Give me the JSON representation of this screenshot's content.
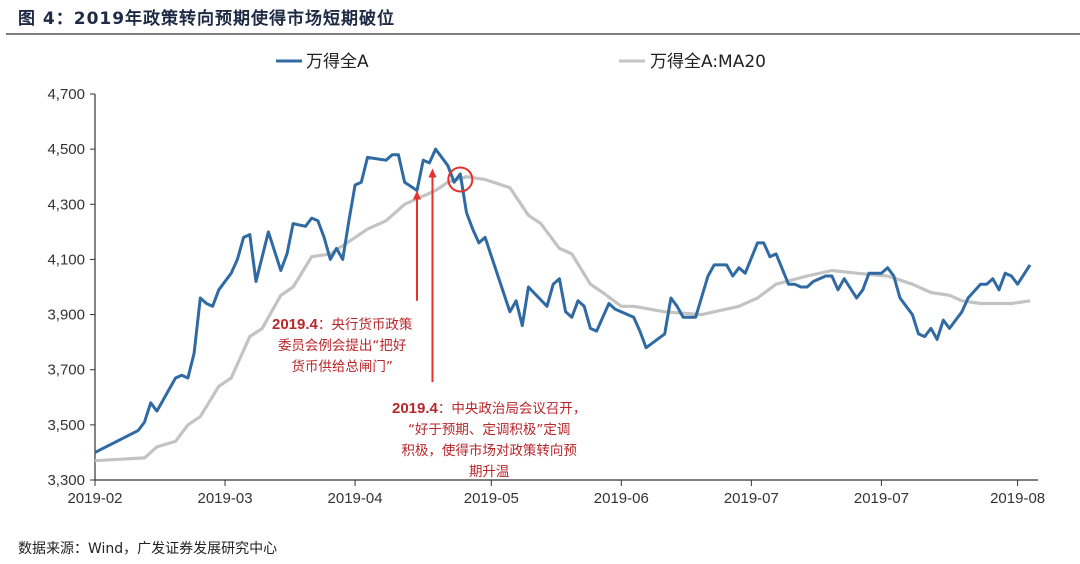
{
  "title": "图 4：2019年政策转向预期使得市场短期破位",
  "source": "数据来源：Wind，广发证券发展研究中心",
  "colors": {
    "series_main": "#2f6aa3",
    "series_ma": "#c3c3c3",
    "annotation_text": "#b8262a",
    "annotation_mark": "#e5312b"
  },
  "chart_data": {
    "type": "line",
    "title": "",
    "xlabel": "",
    "ylabel": "",
    "ylim": [
      3300,
      4700
    ],
    "xlim": [
      0,
      151
    ],
    "grid": false,
    "legend": "top",
    "y_ticks": [
      "3,300",
      "3,500",
      "3,700",
      "3,900",
      "4,100",
      "4,300",
      "4,500",
      "4,700"
    ],
    "y_tick_values": [
      3300,
      3500,
      3700,
      3900,
      4100,
      4300,
      4500,
      4700
    ],
    "x_ticks": [
      {
        "x": 0,
        "label": "2019-02"
      },
      {
        "x": 21,
        "label": "2019-03"
      },
      {
        "x": 42,
        "label": "2019-04"
      },
      {
        "x": 64,
        "label": "2019-05"
      },
      {
        "x": 85,
        "label": "2019-06"
      },
      {
        "x": 106,
        "label": "2019-07"
      },
      {
        "x": 127,
        "label": "2019-07"
      },
      {
        "x": 149,
        "label": "2019-08"
      }
    ],
    "series": [
      {
        "name": "万得全A",
        "points": [
          [
            0,
            3400
          ],
          [
            7,
            3480
          ],
          [
            8,
            3510
          ],
          [
            9,
            3580
          ],
          [
            10,
            3550
          ],
          [
            13,
            3670
          ],
          [
            14,
            3680
          ],
          [
            15,
            3670
          ],
          [
            16,
            3760
          ],
          [
            17,
            3960
          ],
          [
            18,
            3940
          ],
          [
            19,
            3930
          ],
          [
            20,
            3990
          ],
          [
            22,
            4050
          ],
          [
            23,
            4100
          ],
          [
            24,
            4180
          ],
          [
            25,
            4190
          ],
          [
            26,
            4020
          ],
          [
            28,
            4200
          ],
          [
            30,
            4060
          ],
          [
            31,
            4120
          ],
          [
            32,
            4230
          ],
          [
            34,
            4220
          ],
          [
            35,
            4250
          ],
          [
            36,
            4240
          ],
          [
            37,
            4180
          ],
          [
            38,
            4100
          ],
          [
            39,
            4140
          ],
          [
            40,
            4100
          ],
          [
            41,
            4240
          ],
          [
            42,
            4370
          ],
          [
            43,
            4380
          ],
          [
            44,
            4470
          ],
          [
            47,
            4460
          ],
          [
            48,
            4480
          ],
          [
            49,
            4480
          ],
          [
            50,
            4380
          ],
          [
            52,
            4350
          ],
          [
            53,
            4460
          ],
          [
            54,
            4450
          ],
          [
            55,
            4500
          ],
          [
            57,
            4440
          ],
          [
            58,
            4380
          ],
          [
            59,
            4410
          ],
          [
            60,
            4270
          ],
          [
            61,
            4210
          ],
          [
            62,
            4160
          ],
          [
            63,
            4180
          ],
          [
            67,
            3910
          ],
          [
            68,
            3950
          ],
          [
            69,
            3860
          ],
          [
            70,
            4000
          ],
          [
            73,
            3930
          ],
          [
            74,
            4010
          ],
          [
            75,
            4030
          ],
          [
            76,
            3910
          ],
          [
            77,
            3890
          ],
          [
            78,
            3950
          ],
          [
            79,
            3930
          ],
          [
            80,
            3850
          ],
          [
            81,
            3840
          ],
          [
            83,
            3940
          ],
          [
            84,
            3920
          ],
          [
            87,
            3890
          ],
          [
            88,
            3840
          ],
          [
            89,
            3780
          ],
          [
            92,
            3830
          ],
          [
            93,
            3960
          ],
          [
            94,
            3930
          ],
          [
            95,
            3890
          ],
          [
            97,
            3890
          ],
          [
            99,
            4040
          ],
          [
            100,
            4080
          ],
          [
            102,
            4080
          ],
          [
            103,
            4040
          ],
          [
            104,
            4070
          ],
          [
            105,
            4050
          ],
          [
            107,
            4160
          ],
          [
            108,
            4160
          ],
          [
            109,
            4110
          ],
          [
            110,
            4120
          ],
          [
            112,
            4010
          ],
          [
            113,
            4010
          ],
          [
            114,
            4000
          ],
          [
            115,
            4000
          ],
          [
            116,
            4020
          ],
          [
            118,
            4040
          ],
          [
            119,
            4040
          ],
          [
            120,
            3990
          ],
          [
            121,
            4030
          ],
          [
            123,
            3960
          ],
          [
            124,
            3990
          ],
          [
            125,
            4050
          ],
          [
            127,
            4050
          ],
          [
            128,
            4070
          ],
          [
            129,
            4040
          ],
          [
            130,
            3960
          ],
          [
            132,
            3900
          ],
          [
            133,
            3830
          ],
          [
            134,
            3820
          ],
          [
            135,
            3850
          ],
          [
            136,
            3810
          ],
          [
            137,
            3880
          ],
          [
            138,
            3850
          ],
          [
            140,
            3910
          ],
          [
            141,
            3960
          ],
          [
            143,
            4010
          ],
          [
            144,
            4010
          ],
          [
            145,
            4030
          ],
          [
            146,
            3990
          ],
          [
            147,
            4050
          ],
          [
            148,
            4040
          ],
          [
            149,
            4010
          ],
          [
            151,
            4080
          ]
        ]
      },
      {
        "name": "万得全A:MA20",
        "points": [
          [
            0,
            3370
          ],
          [
            8,
            3380
          ],
          [
            10,
            3420
          ],
          [
            13,
            3440
          ],
          [
            15,
            3500
          ],
          [
            17,
            3530
          ],
          [
            20,
            3640
          ],
          [
            22,
            3670
          ],
          [
            25,
            3820
          ],
          [
            27,
            3850
          ],
          [
            30,
            3970
          ],
          [
            32,
            4000
          ],
          [
            35,
            4110
          ],
          [
            38,
            4120
          ],
          [
            42,
            4180
          ],
          [
            44,
            4210
          ],
          [
            47,
            4240
          ],
          [
            50,
            4300
          ],
          [
            52,
            4320
          ],
          [
            55,
            4350
          ],
          [
            57,
            4380
          ],
          [
            60,
            4400
          ],
          [
            63,
            4390
          ],
          [
            67,
            4360
          ],
          [
            70,
            4260
          ],
          [
            72,
            4230
          ],
          [
            75,
            4140
          ],
          [
            77,
            4120
          ],
          [
            80,
            4010
          ],
          [
            82,
            3980
          ],
          [
            85,
            3930
          ],
          [
            87,
            3930
          ],
          [
            92,
            3910
          ],
          [
            98,
            3900
          ],
          [
            100,
            3910
          ],
          [
            104,
            3930
          ],
          [
            107,
            3960
          ],
          [
            110,
            4010
          ],
          [
            115,
            4040
          ],
          [
            119,
            4060
          ],
          [
            123,
            4050
          ],
          [
            128,
            4040
          ],
          [
            132,
            4010
          ],
          [
            135,
            3980
          ],
          [
            138,
            3970
          ],
          [
            140,
            3950
          ],
          [
            143,
            3940
          ],
          [
            148,
            3940
          ],
          [
            151,
            3950
          ]
        ]
      }
    ],
    "annotations": [
      {
        "type": "arrow",
        "x": 52,
        "from": 3950,
        "to": 4350
      },
      {
        "type": "arrow",
        "x": 54.5,
        "from": 3655,
        "to": 4430
      },
      {
        "type": "circle",
        "x": 59,
        "y": 4390
      },
      {
        "type": "text",
        "date": "2019.4",
        "text": [
          "：央行货币政策",
          "委员会例会提出“把好",
          "货币供给总闸门”"
        ]
      },
      {
        "type": "text",
        "date": "2019.4",
        "text": [
          "：中央政治局会议召开，",
          "“好于预期、定调积极”定调",
          "积极，使得市场对政策转向预",
          "期升温"
        ]
      }
    ]
  }
}
